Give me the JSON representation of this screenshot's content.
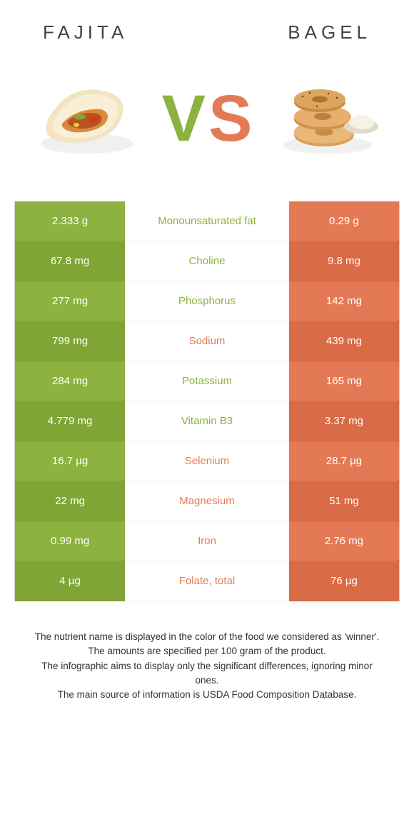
{
  "colors": {
    "fajita": "#8cb23f",
    "bagel": "#e47a55",
    "fajita_dark": "#7fa536",
    "bagel_dark": "#d96b46"
  },
  "left_title": "FAJITA",
  "right_title": "BAGEL",
  "rows": [
    {
      "left": "2.333 g",
      "label": "Monounsaturated fat",
      "right": "0.29 g",
      "winner": "left"
    },
    {
      "left": "67.8 mg",
      "label": "Choline",
      "right": "9.8 mg",
      "winner": "left"
    },
    {
      "left": "277 mg",
      "label": "Phosphorus",
      "right": "142 mg",
      "winner": "left"
    },
    {
      "left": "799 mg",
      "label": "Sodium",
      "right": "439 mg",
      "winner": "right"
    },
    {
      "left": "284 mg",
      "label": "Potassium",
      "right": "165 mg",
      "winner": "left"
    },
    {
      "left": "4.779 mg",
      "label": "Vitamin B3",
      "right": "3.37 mg",
      "winner": "left"
    },
    {
      "left": "16.7 µg",
      "label": "Selenium",
      "right": "28.7 µg",
      "winner": "right"
    },
    {
      "left": "22 mg",
      "label": "Magnesium",
      "right": "51 mg",
      "winner": "right"
    },
    {
      "left": "0.99 mg",
      "label": "Iron",
      "right": "2.76 mg",
      "winner": "right"
    },
    {
      "left": "4 µg",
      "label": "Folate, total",
      "right": "76 µg",
      "winner": "right"
    }
  ],
  "footer": [
    "The nutrient name is displayed in the color of the food we considered as 'winner'.",
    "The amounts are specified per 100 gram of the product.",
    "The infographic aims to display only the significant differences, ignoring minor ones.",
    "The main source of information is USDA Food Composition Database."
  ]
}
